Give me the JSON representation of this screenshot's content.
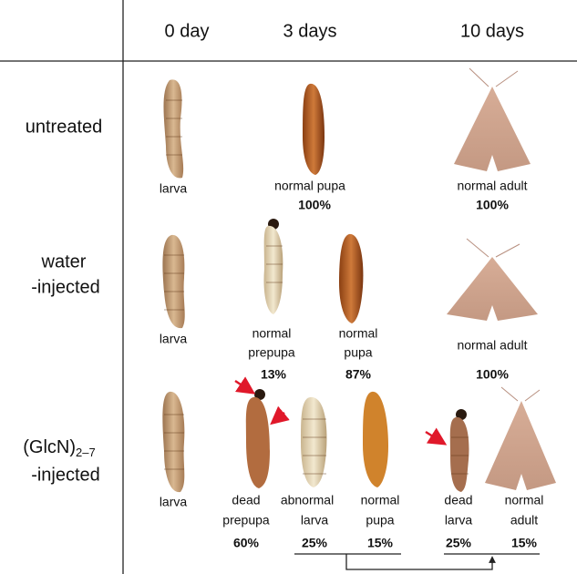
{
  "header": {
    "columns": [
      "0 day",
      "3 days",
      "10 days"
    ]
  },
  "rows": [
    {
      "label": [
        "untreated"
      ],
      "items": [
        {
          "name": [
            "larva"
          ]
        },
        {
          "name": [
            "normal pupa"
          ],
          "percent": "100%"
        },
        {
          "name": [
            "normal adult"
          ],
          "percent": "100%"
        }
      ]
    },
    {
      "label": [
        "water",
        "-injected"
      ],
      "items": [
        {
          "name": [
            "larva"
          ]
        },
        {
          "name": [
            "normal",
            "prepupa"
          ],
          "percent": "13%"
        },
        {
          "name": [
            "normal",
            "pupa"
          ],
          "percent": "87%"
        },
        {
          "name": [
            "normal adult"
          ],
          "percent": "100%"
        }
      ]
    },
    {
      "label": {
        "main": "(GlcN)",
        "subscript": "2–7",
        "line2": "-injected"
      },
      "items": [
        {
          "name": [
            "larva"
          ]
        },
        {
          "name": [
            "dead",
            "prepupa"
          ],
          "percent": "60%"
        },
        {
          "name": [
            "abnormal",
            "larva"
          ],
          "percent": "25%"
        },
        {
          "name": [
            "normal",
            "pupa"
          ],
          "percent": "15%"
        },
        {
          "name": [
            "dead",
            "larva"
          ],
          "percent": "25%"
        },
        {
          "name": [
            "normal",
            "adult"
          ],
          "percent": "15%"
        }
      ]
    }
  ]
}
